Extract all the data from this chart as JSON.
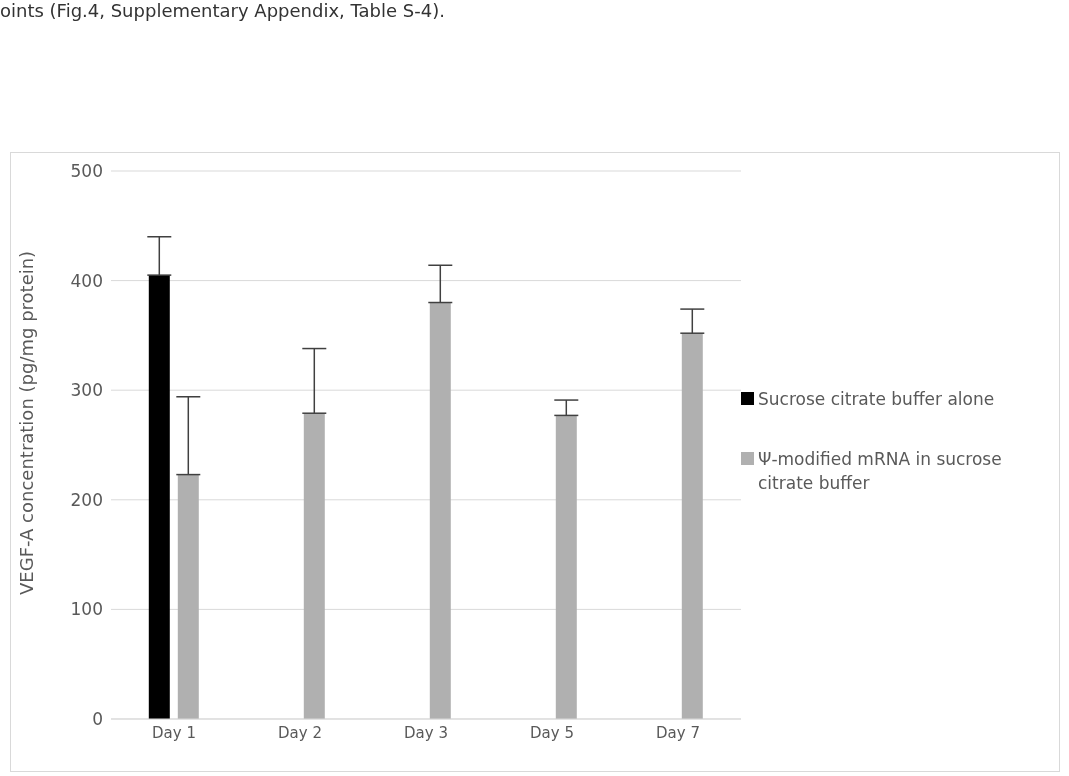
{
  "chart_data": {
    "type": "bar",
    "ylabel": "VEGF-A concentration (pg/mg protein)",
    "annotations": [
      "oints (Fig.4, Supplementary Appendix, Table S-4)."
    ],
    "categories": [
      "Day 1",
      "Day 2",
      "Day 3",
      "Day 5",
      "Day 7"
    ],
    "series": [
      {
        "name": "Sucrose citrate buffer alone",
        "color": "#000000",
        "values": [
          405,
          null,
          null,
          null,
          null
        ],
        "errors": [
          [
            405,
            440
          ],
          null,
          null,
          null,
          null
        ]
      },
      {
        "name": "Ψ-modified mRNA in sucrose citrate buffer",
        "color": "#b0b0b0",
        "values": [
          223,
          279,
          380,
          277,
          352
        ],
        "errors": [
          [
            223,
            294
          ],
          [
            279,
            338
          ],
          [
            380,
            414
          ],
          [
            277,
            291
          ],
          [
            352,
            374
          ]
        ]
      }
    ],
    "ylim": [
      0,
      500
    ],
    "yticks": [
      0,
      100,
      200,
      300,
      400,
      500
    ],
    "grid": "y",
    "legend": "right"
  }
}
